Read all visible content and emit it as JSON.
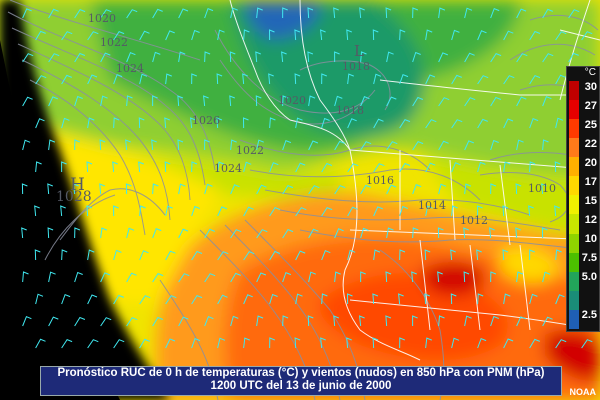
{
  "map": {
    "isobar_labels": [
      "1020",
      "1022",
      "1024",
      "1026",
      "1022",
      "1024",
      "1020",
      "1018",
      "1016",
      "1014",
      "1012",
      "1010",
      "1018"
    ],
    "high_center": {
      "symbol": "H",
      "value": "1028"
    },
    "low_center": {
      "symbol": "L"
    }
  },
  "colorbar": {
    "unit": "°C",
    "labels": [
      "30",
      "27",
      "25",
      "22",
      "20",
      "17",
      "15",
      "12",
      "10",
      "7.5",
      "5.0",
      "2.5"
    ],
    "colors": [
      "#c00000",
      "#e60000",
      "#ff3a00",
      "#ff7a1a",
      "#ffb000",
      "#ffd800",
      "#f0f000",
      "#c8e600",
      "#8fd400",
      "#4cc000",
      "#22a45a",
      "#1a8c78",
      "#1f5fb4"
    ]
  },
  "caption": {
    "line1": "Pronóstico RUC de 0 h de temperaturas (°C) y vientos (nudos) en 850 hPa con PNM (hPa)",
    "line2": "1200 UTC del 13 de junio de 2000"
  },
  "credit": "NOAA"
}
